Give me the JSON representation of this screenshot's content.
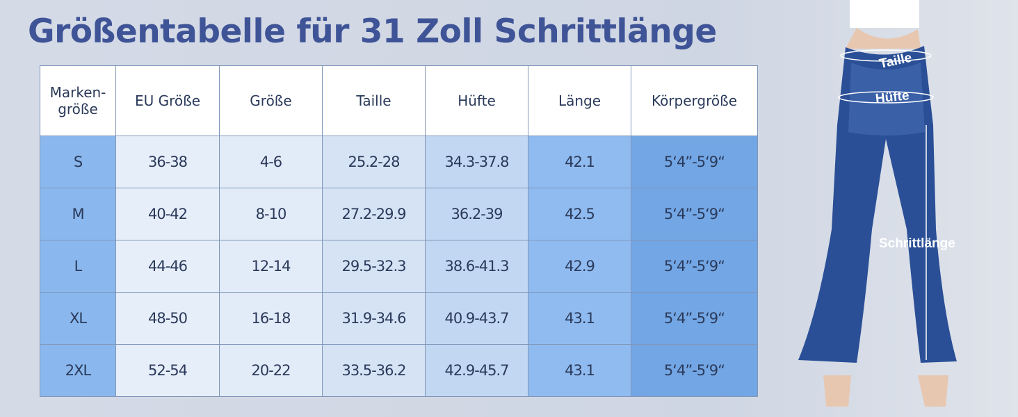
{
  "header": {
    "title": "Größentabelle für 31 Zoll Schrittlänge"
  },
  "table": {
    "columns": [
      "Marken-\ngröße",
      "EU Größe",
      "Größe",
      "Taille",
      "Hüfte",
      "Länge",
      "Körpergröße"
    ],
    "rows": [
      [
        "S",
        "36-38",
        "4-6",
        "25.2-28",
        "34.3-37.8",
        "42.1",
        "5‘4”-5‘9“"
      ],
      [
        "M",
        "40-42",
        "8-10",
        "27.2-29.9",
        "36.2-39",
        "42.5",
        "5‘4”-5‘9“"
      ],
      [
        "L",
        "44-46",
        "12-14",
        "29.5-32.3",
        "38.6-41.3",
        "42.9",
        "5‘4”-5‘9“"
      ],
      [
        "XL",
        "48-50",
        "16-18",
        "31.9-34.6",
        "40.9-43.7",
        "43.1",
        "5‘4”-5‘9“"
      ],
      [
        "2XL",
        "52-54",
        "20-22",
        "33.5-36.2",
        "42.9-45.7",
        "43.1",
        "5‘4”-5‘9“"
      ]
    ]
  },
  "figure": {
    "labels": [
      "Taille",
      "Hüfte",
      "Schrittlänge"
    ]
  }
}
